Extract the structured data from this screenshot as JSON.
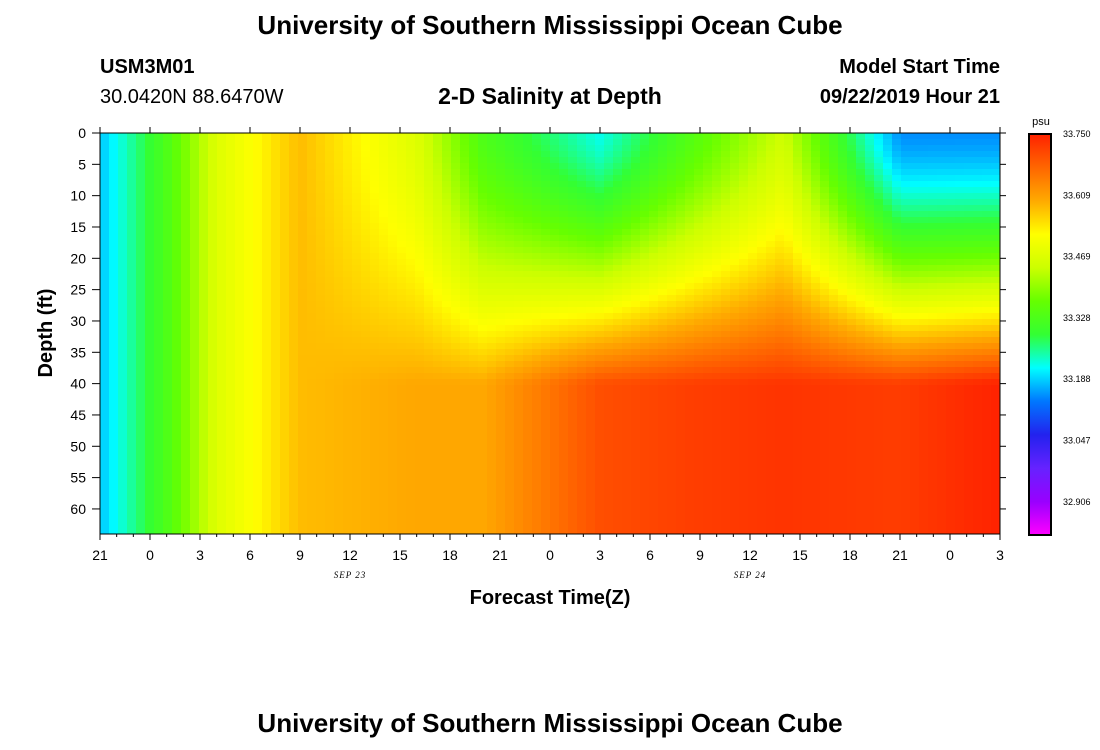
{
  "header": {
    "title": "University of Southern Mississippi Ocean Cube",
    "station_id": "USM3M01",
    "station_coords": "30.0420N 88.6470W",
    "plot_title": "2-D Salinity at Depth",
    "start_label": "Model Start Time",
    "start_value": "09/22/2019 Hour 21"
  },
  "footer": {
    "title": "University of Southern Mississippi Ocean Cube"
  },
  "chart_data": {
    "type": "heatmap",
    "title": "2-D Salinity at Depth",
    "xlabel": "Forecast Time(Z)",
    "ylabel": "Depth (ft)",
    "x_ticks": [
      "21",
      "0",
      "3",
      "6",
      "9",
      "12",
      "15",
      "18",
      "21",
      "0",
      "3",
      "6",
      "9",
      "12",
      "15",
      "18",
      "21",
      "0",
      "3"
    ],
    "x_range_hours": [
      0,
      54
    ],
    "date_labels": [
      {
        "text": "SEP 23",
        "hour": 15
      },
      {
        "text": "SEP 24",
        "hour": 39
      }
    ],
    "y_ticks": [
      "0",
      "5",
      "10",
      "15",
      "20",
      "25",
      "30",
      "35",
      "40",
      "45",
      "50",
      "55",
      "60"
    ],
    "y_range_ft": [
      0,
      64
    ],
    "colorbar": {
      "unit": "psu",
      "min": 32.83,
      "max": 33.75,
      "labels": [
        "33.750",
        "33.609",
        "33.469",
        "33.328",
        "33.188",
        "33.047",
        "32.906"
      ],
      "label_values": [
        33.75,
        33.609,
        33.469,
        33.328,
        33.188,
        33.047,
        32.906
      ],
      "colors": [
        "#ff00ff",
        "#9900ff",
        "#6622ff",
        "#2222ee",
        "#0077ff",
        "#00ffff",
        "#33ff33",
        "#66ff00",
        "#ccff00",
        "#ffff00",
        "#ffaa00",
        "#ff6600",
        "#ff2200"
      ]
    },
    "salinity_profile_by_hour": [
      {
        "hour": 0,
        "surface": 33.18,
        "bottom": 33.18
      },
      {
        "hour": 4,
        "surface": 33.33,
        "bottom": 33.33
      },
      {
        "hour": 7,
        "surface": 33.47,
        "bottom": 33.47
      },
      {
        "hour": 12,
        "surface": 33.58,
        "bottom": 33.58
      },
      {
        "hour": 19,
        "surface": 33.47,
        "bottom": 33.6
      },
      {
        "hour": 23,
        "surface": 33.33,
        "bottom": 33.6
      },
      {
        "hour": 30,
        "surface": 33.22,
        "bottom": 33.7
      },
      {
        "hour": 36,
        "surface": 33.35,
        "bottom": 33.72
      },
      {
        "hour": 41,
        "surface": 33.45,
        "bottom": 33.73
      },
      {
        "hour": 48,
        "surface": 33.15,
        "bottom": 33.72
      },
      {
        "hour": 54,
        "surface": 33.15,
        "bottom": 33.75
      }
    ]
  }
}
